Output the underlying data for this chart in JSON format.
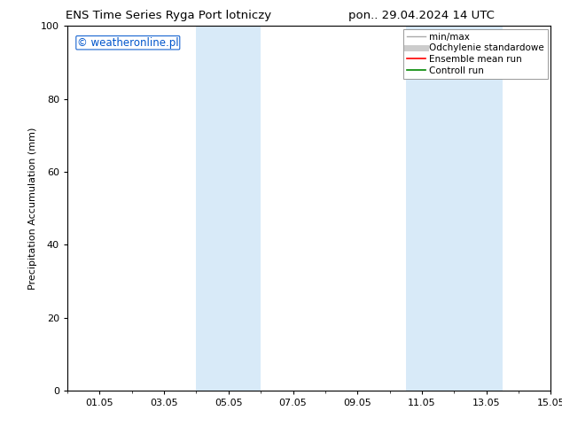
{
  "title_left": "ENS Time Series Ryga Port lotniczy",
  "title_right": "pon.. 29.04.2024 14 UTC",
  "ylabel": "Precipitation Accumulation (mm)",
  "watermark": "© weatheronline.pl",
  "watermark_color": "#0055cc",
  "ylim": [
    0,
    100
  ],
  "yticks": [
    0,
    20,
    40,
    60,
    80,
    100
  ],
  "xlim_start": 0.0,
  "xlim_end": 14.0,
  "xtick_positions": [
    1,
    3,
    5,
    7,
    9,
    11,
    13,
    15
  ],
  "xtick_labels": [
    "01.05",
    "03.05",
    "05.05",
    "07.05",
    "09.05",
    "11.05",
    "13.05",
    "15.05"
  ],
  "shaded_regions": [
    {
      "xmin": 4.0,
      "xmax": 6.0,
      "color": "#d8eaf8"
    },
    {
      "xmin": 10.5,
      "xmax": 13.5,
      "color": "#d8eaf8"
    }
  ],
  "legend_entries": [
    {
      "label": "min/max",
      "color": "#aaaaaa",
      "lw": 1.0
    },
    {
      "label": "Odchylenie standardowe",
      "color": "#cccccc",
      "lw": 5.0
    },
    {
      "label": "Ensemble mean run",
      "color": "#ff0000",
      "lw": 1.2
    },
    {
      "label": "Controll run",
      "color": "#008800",
      "lw": 1.2
    }
  ],
  "background_color": "#ffffff",
  "title_fontsize": 9.5,
  "axis_label_fontsize": 8,
  "tick_fontsize": 8,
  "legend_fontsize": 7.5,
  "watermark_fontsize": 8.5
}
